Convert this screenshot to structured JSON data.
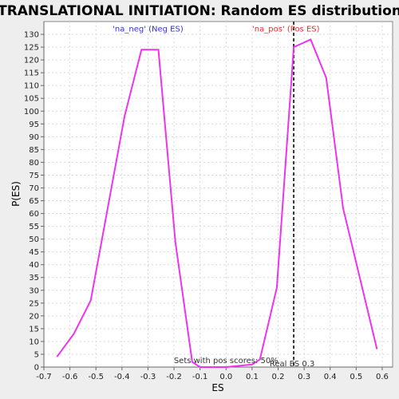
{
  "chart_data": {
    "type": "line",
    "title": "TRANSLATIONAL INITIATION: Random ES distribution",
    "xlabel": "ES",
    "ylabel": "P(ES)",
    "xlim": [
      -0.7,
      0.64
    ],
    "ylim": [
      0,
      135
    ],
    "x_ticks": [
      -0.7,
      -0.6,
      -0.5,
      -0.4,
      -0.3,
      -0.2,
      -0.1,
      0.0,
      0.1,
      0.2,
      0.3,
      0.4,
      0.5,
      0.6
    ],
    "x_tick_labels": [
      "-0.7",
      "-0.6",
      "-0.5",
      "-0.4",
      "-0.3",
      "-0.2",
      "-0.1",
      "0.0",
      "0.1",
      "0.2",
      "0.3",
      "0.4",
      "0.5",
      "0.6"
    ],
    "y_ticks": [
      0,
      5,
      10,
      15,
      20,
      25,
      30,
      35,
      40,
      45,
      50,
      55,
      60,
      65,
      70,
      75,
      80,
      85,
      90,
      95,
      100,
      105,
      110,
      115,
      120,
      125,
      130
    ],
    "y_tick_labels": [
      "0",
      "5",
      "10",
      "15",
      "20",
      "25",
      "30",
      "35",
      "40",
      "45",
      "50",
      "55",
      "60",
      "65",
      "70",
      "75",
      "80",
      "85",
      "90",
      "95",
      "100",
      "105",
      "110",
      "115",
      "120",
      "125",
      "130"
    ],
    "grid": true,
    "series": [
      {
        "color": "#ee33ee",
        "x": [
          -0.65,
          -0.585,
          -0.52,
          -0.39,
          -0.325,
          -0.26,
          -0.195,
          -0.13,
          -0.1,
          -0.06,
          0.0,
          0.1,
          0.13,
          0.195,
          0.26,
          0.325,
          0.385,
          0.45,
          0.58
        ],
        "y": [
          4,
          13,
          26,
          98,
          124,
          124,
          49,
          2,
          0,
          0,
          0,
          1,
          3,
          31,
          125,
          128,
          113,
          62,
          7
        ]
      }
    ],
    "vline": {
      "x": 0.26,
      "color": "#333333",
      "label": "Real ES 0.3"
    },
    "annotations": {
      "neg": {
        "text": "'na_neg' (Neg ES)",
        "color": "#3333cc",
        "x": -0.3,
        "y": 132
      },
      "pos": {
        "text": "'na_pos' (Pos ES)",
        "color": "#dd3333",
        "x": 0.23,
        "y": 132
      },
      "sets": {
        "text": "Sets with pos scores: 50%",
        "color": "#333333",
        "x": 0.0,
        "y": 1.5
      }
    }
  }
}
